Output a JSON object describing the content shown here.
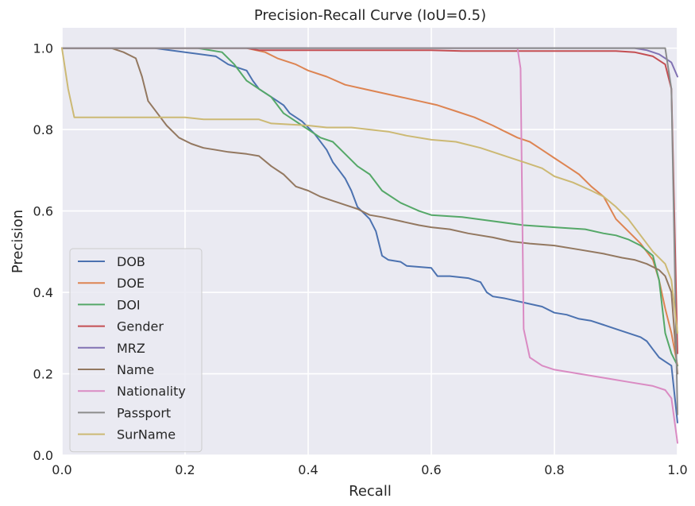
{
  "chart_data": {
    "type": "line",
    "title": "Precision-Recall Curve (IoU=0.5)",
    "xlabel": "Recall",
    "ylabel": "Precision",
    "xlim": [
      0.0,
      1.0
    ],
    "ylim": [
      0.0,
      1.05
    ],
    "xticks": [
      "0.0",
      "0.2",
      "0.4",
      "0.6",
      "0.8",
      "1.0"
    ],
    "yticks": [
      "0.0",
      "0.2",
      "0.4",
      "0.6",
      "0.8",
      "1.0"
    ],
    "grid": true,
    "legend_position": "lower left",
    "series": [
      {
        "name": "DOB",
        "color": "#4c72b0",
        "points": [
          [
            0,
            1.0
          ],
          [
            0.15,
            1.0
          ],
          [
            0.2,
            0.99
          ],
          [
            0.25,
            0.98
          ],
          [
            0.27,
            0.96
          ],
          [
            0.28,
            0.955
          ],
          [
            0.3,
            0.945
          ],
          [
            0.31,
            0.92
          ],
          [
            0.32,
            0.9
          ],
          [
            0.34,
            0.88
          ],
          [
            0.36,
            0.86
          ],
          [
            0.37,
            0.84
          ],
          [
            0.39,
            0.82
          ],
          [
            0.41,
            0.79
          ],
          [
            0.43,
            0.75
          ],
          [
            0.44,
            0.72
          ],
          [
            0.45,
            0.7
          ],
          [
            0.46,
            0.68
          ],
          [
            0.47,
            0.65
          ],
          [
            0.48,
            0.61
          ],
          [
            0.5,
            0.58
          ],
          [
            0.51,
            0.55
          ],
          [
            0.52,
            0.49
          ],
          [
            0.53,
            0.48
          ],
          [
            0.55,
            0.475
          ],
          [
            0.56,
            0.465
          ],
          [
            0.6,
            0.46
          ],
          [
            0.61,
            0.44
          ],
          [
            0.63,
            0.44
          ],
          [
            0.66,
            0.435
          ],
          [
            0.68,
            0.425
          ],
          [
            0.69,
            0.4
          ],
          [
            0.7,
            0.39
          ],
          [
            0.72,
            0.385
          ],
          [
            0.75,
            0.375
          ],
          [
            0.78,
            0.365
          ],
          [
            0.8,
            0.35
          ],
          [
            0.82,
            0.345
          ],
          [
            0.84,
            0.335
          ],
          [
            0.86,
            0.33
          ],
          [
            0.88,
            0.32
          ],
          [
            0.9,
            0.31
          ],
          [
            0.92,
            0.3
          ],
          [
            0.94,
            0.29
          ],
          [
            0.95,
            0.28
          ],
          [
            0.96,
            0.26
          ],
          [
            0.97,
            0.24
          ],
          [
            0.98,
            0.23
          ],
          [
            0.99,
            0.22
          ],
          [
            1.0,
            0.08
          ]
        ]
      },
      {
        "name": "DOE",
        "color": "#dd8452",
        "points": [
          [
            0,
            1.0
          ],
          [
            0.3,
            1.0
          ],
          [
            0.33,
            0.99
          ],
          [
            0.35,
            0.975
          ],
          [
            0.38,
            0.96
          ],
          [
            0.4,
            0.945
          ],
          [
            0.43,
            0.93
          ],
          [
            0.46,
            0.91
          ],
          [
            0.49,
            0.9
          ],
          [
            0.52,
            0.89
          ],
          [
            0.55,
            0.88
          ],
          [
            0.58,
            0.87
          ],
          [
            0.61,
            0.86
          ],
          [
            0.64,
            0.845
          ],
          [
            0.67,
            0.83
          ],
          [
            0.7,
            0.81
          ],
          [
            0.72,
            0.795
          ],
          [
            0.74,
            0.78
          ],
          [
            0.76,
            0.77
          ],
          [
            0.78,
            0.75
          ],
          [
            0.8,
            0.73
          ],
          [
            0.82,
            0.71
          ],
          [
            0.84,
            0.69
          ],
          [
            0.86,
            0.66
          ],
          [
            0.88,
            0.635
          ],
          [
            0.9,
            0.58
          ],
          [
            0.92,
            0.55
          ],
          [
            0.94,
            0.52
          ],
          [
            0.96,
            0.48
          ],
          [
            0.97,
            0.43
          ],
          [
            0.98,
            0.36
          ],
          [
            0.99,
            0.3
          ],
          [
            1.0,
            0.22
          ]
        ]
      },
      {
        "name": "DOI",
        "color": "#55a868",
        "points": [
          [
            0,
            1.0
          ],
          [
            0.22,
            1.0
          ],
          [
            0.26,
            0.99
          ],
          [
            0.28,
            0.96
          ],
          [
            0.3,
            0.92
          ],
          [
            0.32,
            0.9
          ],
          [
            0.34,
            0.88
          ],
          [
            0.36,
            0.84
          ],
          [
            0.38,
            0.82
          ],
          [
            0.4,
            0.8
          ],
          [
            0.42,
            0.78
          ],
          [
            0.44,
            0.77
          ],
          [
            0.46,
            0.74
          ],
          [
            0.48,
            0.71
          ],
          [
            0.5,
            0.69
          ],
          [
            0.52,
            0.65
          ],
          [
            0.55,
            0.62
          ],
          [
            0.58,
            0.6
          ],
          [
            0.6,
            0.59
          ],
          [
            0.65,
            0.585
          ],
          [
            0.7,
            0.575
          ],
          [
            0.75,
            0.565
          ],
          [
            0.8,
            0.56
          ],
          [
            0.85,
            0.555
          ],
          [
            0.88,
            0.545
          ],
          [
            0.9,
            0.54
          ],
          [
            0.92,
            0.53
          ],
          [
            0.94,
            0.515
          ],
          [
            0.96,
            0.49
          ],
          [
            0.97,
            0.43
          ],
          [
            0.98,
            0.3
          ],
          [
            0.99,
            0.25
          ],
          [
            1.0,
            0.22
          ]
        ]
      },
      {
        "name": "Gender",
        "color": "#c44e52",
        "points": [
          [
            0,
            1.0
          ],
          [
            0.3,
            1.0
          ],
          [
            0.32,
            0.995
          ],
          [
            0.6,
            0.995
          ],
          [
            0.65,
            0.993
          ],
          [
            0.9,
            0.993
          ],
          [
            0.93,
            0.99
          ],
          [
            0.96,
            0.98
          ],
          [
            0.98,
            0.96
          ],
          [
            0.99,
            0.9
          ],
          [
            1.0,
            0.25
          ]
        ]
      },
      {
        "name": "MRZ",
        "color": "#8172b3",
        "points": [
          [
            0,
            1.0
          ],
          [
            0.93,
            1.0
          ],
          [
            0.95,
            0.995
          ],
          [
            0.97,
            0.985
          ],
          [
            0.99,
            0.965
          ],
          [
            1.0,
            0.93
          ]
        ]
      },
      {
        "name": "Name",
        "color": "#937860",
        "points": [
          [
            0,
            1.0
          ],
          [
            0.08,
            1.0
          ],
          [
            0.1,
            0.99
          ],
          [
            0.12,
            0.975
          ],
          [
            0.13,
            0.93
          ],
          [
            0.14,
            0.87
          ],
          [
            0.16,
            0.83
          ],
          [
            0.17,
            0.81
          ],
          [
            0.19,
            0.78
          ],
          [
            0.21,
            0.765
          ],
          [
            0.23,
            0.755
          ],
          [
            0.25,
            0.75
          ],
          [
            0.27,
            0.745
          ],
          [
            0.3,
            0.74
          ],
          [
            0.32,
            0.735
          ],
          [
            0.34,
            0.71
          ],
          [
            0.36,
            0.69
          ],
          [
            0.38,
            0.66
          ],
          [
            0.4,
            0.65
          ],
          [
            0.42,
            0.635
          ],
          [
            0.44,
            0.625
          ],
          [
            0.46,
            0.615
          ],
          [
            0.48,
            0.605
          ],
          [
            0.5,
            0.59
          ],
          [
            0.52,
            0.585
          ],
          [
            0.55,
            0.575
          ],
          [
            0.58,
            0.565
          ],
          [
            0.6,
            0.56
          ],
          [
            0.63,
            0.555
          ],
          [
            0.66,
            0.545
          ],
          [
            0.7,
            0.535
          ],
          [
            0.73,
            0.525
          ],
          [
            0.76,
            0.52
          ],
          [
            0.8,
            0.515
          ],
          [
            0.84,
            0.505
          ],
          [
            0.88,
            0.495
          ],
          [
            0.91,
            0.485
          ],
          [
            0.93,
            0.48
          ],
          [
            0.95,
            0.47
          ],
          [
            0.97,
            0.455
          ],
          [
            0.98,
            0.44
          ],
          [
            0.99,
            0.4
          ],
          [
            1.0,
            0.2
          ]
        ]
      },
      {
        "name": "Nationality",
        "color": "#da8bc3",
        "points": [
          [
            0,
            1.0
          ],
          [
            0.74,
            1.0
          ],
          [
            0.745,
            0.95
          ],
          [
            0.75,
            0.31
          ],
          [
            0.76,
            0.24
          ],
          [
            0.78,
            0.22
          ],
          [
            0.8,
            0.21
          ],
          [
            0.84,
            0.2
          ],
          [
            0.88,
            0.19
          ],
          [
            0.92,
            0.18
          ],
          [
            0.96,
            0.17
          ],
          [
            0.98,
            0.16
          ],
          [
            0.99,
            0.14
          ],
          [
            1.0,
            0.03
          ]
        ]
      },
      {
        "name": "Passport",
        "color": "#8c8c8c",
        "points": [
          [
            0,
            1.0
          ],
          [
            0.98,
            1.0
          ],
          [
            0.99,
            0.9
          ],
          [
            1.0,
            0.1
          ]
        ]
      },
      {
        "name": "SurName",
        "color": "#ccb974",
        "points": [
          [
            0,
            1.0
          ],
          [
            0.01,
            0.9
          ],
          [
            0.02,
            0.83
          ],
          [
            0.05,
            0.83
          ],
          [
            0.2,
            0.83
          ],
          [
            0.23,
            0.825
          ],
          [
            0.32,
            0.825
          ],
          [
            0.34,
            0.815
          ],
          [
            0.4,
            0.81
          ],
          [
            0.43,
            0.805
          ],
          [
            0.47,
            0.805
          ],
          [
            0.5,
            0.8
          ],
          [
            0.53,
            0.795
          ],
          [
            0.56,
            0.785
          ],
          [
            0.6,
            0.775
          ],
          [
            0.64,
            0.77
          ],
          [
            0.68,
            0.755
          ],
          [
            0.72,
            0.735
          ],
          [
            0.75,
            0.72
          ],
          [
            0.78,
            0.705
          ],
          [
            0.8,
            0.685
          ],
          [
            0.83,
            0.67
          ],
          [
            0.86,
            0.65
          ],
          [
            0.88,
            0.635
          ],
          [
            0.9,
            0.61
          ],
          [
            0.92,
            0.58
          ],
          [
            0.94,
            0.54
          ],
          [
            0.96,
            0.5
          ],
          [
            0.98,
            0.47
          ],
          [
            0.99,
            0.43
          ],
          [
            1.0,
            0.3
          ]
        ]
      }
    ]
  }
}
